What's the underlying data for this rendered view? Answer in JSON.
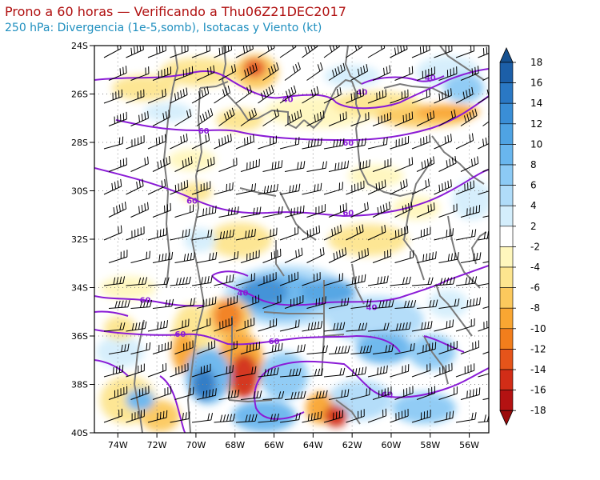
{
  "title": "Prono a 60 horas — Verificando a Thu06Z21DEC2017",
  "subtitle": "250 hPa: Divergencia (1e-5,somb), Isotacas y Viento (kt)",
  "lat_labels": [
    "24S",
    "26S",
    "28S",
    "30S",
    "32S",
    "34S",
    "36S",
    "38S",
    "40S"
  ],
  "lon_labels": [
    "74W",
    "72W",
    "70W",
    "68W",
    "66W",
    "64W",
    "62W",
    "60W",
    "58W",
    "56W"
  ],
  "colorbar": {
    "labels": [
      "18",
      "16",
      "14",
      "12",
      "10",
      "8",
      "6",
      "4",
      "2",
      "-2",
      "-4",
      "-6",
      "-8",
      "-10",
      "-12",
      "-14",
      "-16",
      "-18"
    ],
    "colors": [
      "#1c5fa8",
      "#2a78c4",
      "#3a8ed6",
      "#4fa3e3",
      "#69b6ee",
      "#8ccaf5",
      "#b0dcf9",
      "#d4eefc",
      "#ffffff",
      "#fff7bd",
      "#fde58f",
      "#fcc95d",
      "#f9a632",
      "#f27e1c",
      "#e5541a",
      "#d22d17",
      "#b41212"
    ],
    "cap_top_color": "#165190",
    "cap_bottom_color": "#9b0b0b"
  },
  "isotach_labels": [
    {
      "text": "40",
      "lon": -61.5,
      "lat": -25.9
    },
    {
      "text": "40",
      "lon": -65.3,
      "lat": -26.2
    },
    {
      "text": "40",
      "lon": -58.0,
      "lat": -25.3
    },
    {
      "text": "60",
      "lon": -69.6,
      "lat": -27.5
    },
    {
      "text": "60",
      "lon": -62.2,
      "lat": -28.0
    },
    {
      "text": "60",
      "lon": -70.2,
      "lat": -30.4
    },
    {
      "text": "60",
      "lon": -62.2,
      "lat": -30.9
    },
    {
      "text": "40",
      "lon": -67.6,
      "lat": -34.2
    },
    {
      "text": "40",
      "lon": -61.0,
      "lat": -34.8
    },
    {
      "text": "60",
      "lon": -72.6,
      "lat": -34.5
    },
    {
      "text": "60",
      "lon": -70.8,
      "lat": -35.9
    },
    {
      "text": "60",
      "lon": -66.0,
      "lat": -36.2
    },
    {
      "text": "60",
      "lon": -60.2,
      "lat": -38.4
    }
  ]
}
